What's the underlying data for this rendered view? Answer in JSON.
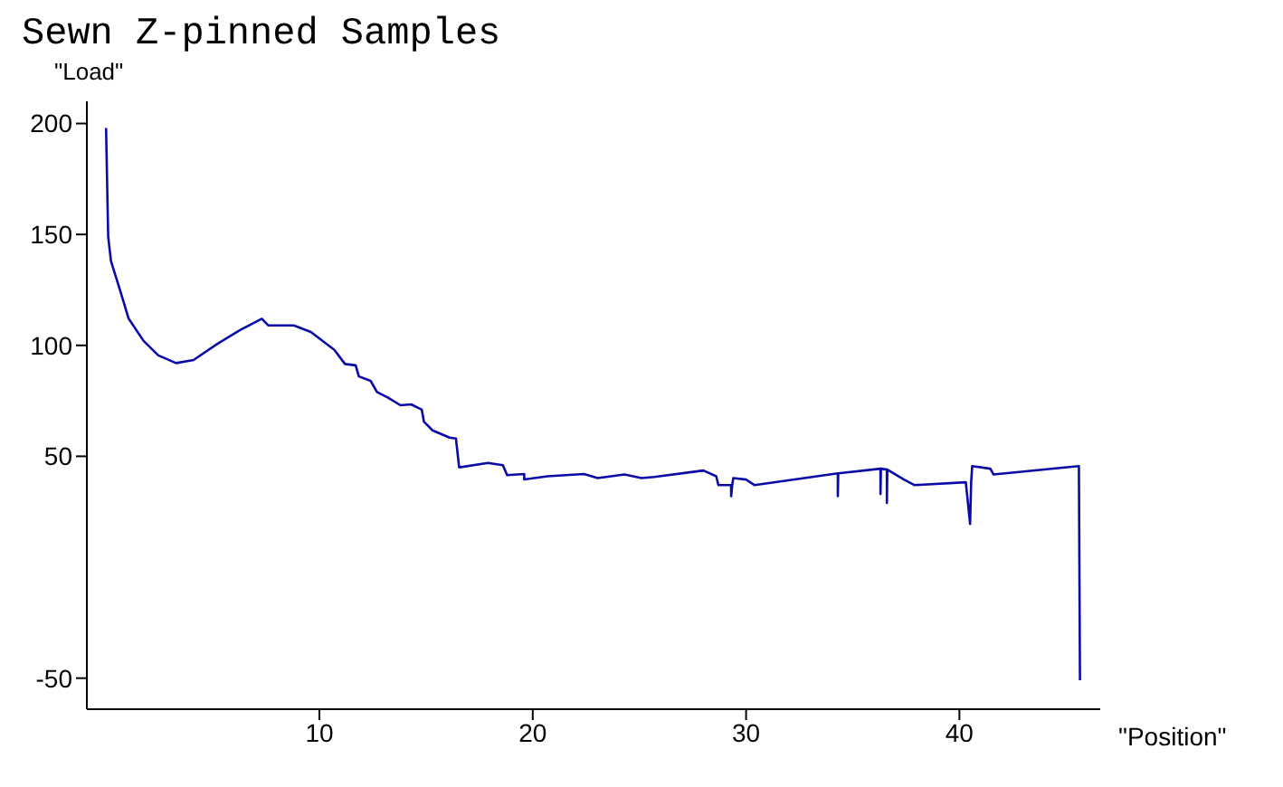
{
  "chart_data": {
    "type": "line",
    "title": "Sewn Z-pinned Samples",
    "xlabel": "\"Position\"",
    "ylabel": "\"Load\"",
    "x": [
      0,
      0.1,
      0.23,
      0.65,
      1.06,
      1.76,
      2.45,
      3.28,
      4.1,
      5.2,
      6.3,
      7.3,
      7.6,
      8.8,
      9.6,
      10.7,
      11.2,
      11.7,
      11.85,
      12.4,
      12.7,
      13.2,
      13.8,
      14.3,
      14.8,
      14.9,
      15.3,
      16.1,
      16.4,
      16.55,
      17.9,
      18.6,
      18.8,
      19.6,
      19.6,
      20.7,
      22.4,
      23.05,
      24.3,
      25.1,
      25.7,
      28.0,
      28.6,
      28.7,
      29.3,
      29.3,
      29.35,
      29.4,
      30.0,
      30.4,
      34.3,
      34.3,
      34.32,
      36.3,
      36.3,
      36.32,
      36.6,
      36.6,
      36.62,
      37.4,
      37.9,
      40.3,
      40.5,
      40.55,
      40.6,
      41.45,
      41.6,
      45.6,
      45.65
    ],
    "series": [
      {
        "color": "#0a0aa8",
        "values": [
          198,
          149,
          138,
          125,
          112,
          102,
          95.5,
          92,
          93.4,
          100.6,
          107,
          112,
          109,
          109,
          106,
          98,
          91.6,
          91,
          86,
          84,
          79,
          76.5,
          73,
          73.4,
          71,
          65.6,
          61.7,
          58.4,
          58,
          45,
          47,
          46,
          41.5,
          42,
          39.6,
          41,
          42,
          40.2,
          41.8,
          40.2,
          40.7,
          43.6,
          41,
          37,
          37,
          32,
          37,
          40.2,
          39.5,
          37,
          42.3,
          32,
          42.3,
          44.4,
          33,
          44.4,
          44,
          29,
          44,
          39.5,
          37,
          38.3,
          19.5,
          38.3,
          45.6,
          44.4,
          41.8,
          45.6,
          -51
        ]
      }
    ],
    "xlim": [
      -0.9,
      46.6
    ],
    "xticks": [
      10,
      20,
      30,
      40
    ],
    "ylim": [
      -64,
      210
    ],
    "yticks": [
      -50,
      50,
      100,
      150,
      200
    ],
    "grid": false,
    "marker": "none",
    "line_style": "solid"
  }
}
